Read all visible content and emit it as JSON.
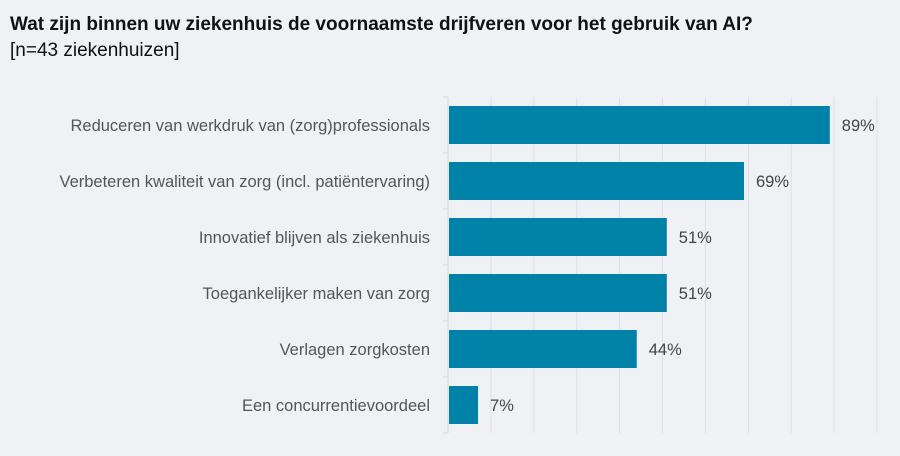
{
  "chart_data": {
    "type": "bar",
    "orientation": "horizontal",
    "title": "Wat zijn binnen uw ziekenhuis de voornaamste drijfveren voor het gebruik van AI?",
    "subtitle": "[n=43 ziekenhuizen]",
    "categories": [
      "Reduceren van werkdruk van (zorg)professionals",
      "Verbeteren kwaliteit van zorg (incl. patiëntervaring)",
      "Innovatief blijven als ziekenhuis",
      "Toegankelijker maken van zorg",
      "Verlagen zorgkosten",
      "Een concurrentievoordeel"
    ],
    "values": [
      89,
      69,
      51,
      51,
      44,
      7
    ],
    "labels": [
      "89%",
      "69%",
      "51%",
      "51%",
      "44%",
      "7%"
    ],
    "unit": "%",
    "xlim": [
      0,
      100
    ],
    "grid": true,
    "grid_step": 10,
    "colors": {
      "bar": "#0082a8",
      "background": "#eff1f5",
      "grid": "#dcdfe4"
    }
  }
}
